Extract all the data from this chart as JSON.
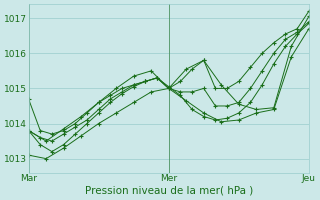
{
  "xlabel": "Pression niveau de la mer( hPa )",
  "bg_color": "#cce8e8",
  "grid_color": "#99cccc",
  "line_color": "#1a6e1a",
  "xlim": [
    0,
    48
  ],
  "ylim": [
    1012.6,
    1017.4
  ],
  "yticks": [
    1013,
    1014,
    1015,
    1016,
    1017
  ],
  "xticks": [
    0,
    24,
    48
  ],
  "xticklabels": [
    "Mar",
    "Mer",
    "Jeu"
  ],
  "series": [
    {
      "x": [
        0,
        2,
        4,
        6,
        8,
        10,
        12,
        14,
        16,
        18,
        20,
        22,
        24,
        26,
        28,
        30,
        32,
        34,
        36,
        38,
        40,
        42,
        44,
        46,
        48
      ],
      "y": [
        1014.7,
        1013.8,
        1013.7,
        1013.8,
        1014.0,
        1014.3,
        1014.6,
        1014.8,
        1015.0,
        1015.1,
        1015.2,
        1015.3,
        1015.0,
        1015.2,
        1015.55,
        1015.8,
        1015.0,
        1015.0,
        1015.2,
        1015.6,
        1016.0,
        1016.3,
        1016.55,
        1016.7,
        1017.2
      ]
    },
    {
      "x": [
        0,
        2,
        4,
        6,
        8,
        10,
        12,
        14,
        16,
        18,
        20,
        22,
        24,
        26,
        28,
        30,
        32,
        34,
        36,
        38,
        40,
        42,
        44,
        46,
        48
      ],
      "y": [
        1013.8,
        1013.6,
        1013.5,
        1013.7,
        1013.9,
        1014.1,
        1014.4,
        1014.7,
        1014.9,
        1015.1,
        1015.2,
        1015.3,
        1015.0,
        1014.9,
        1014.9,
        1015.0,
        1014.5,
        1014.5,
        1014.6,
        1015.0,
        1015.5,
        1016.0,
        1016.4,
        1016.6,
        1016.9
      ]
    },
    {
      "x": [
        0,
        2,
        4,
        6,
        8,
        10,
        12,
        14,
        16,
        18,
        20,
        22,
        24,
        26,
        28,
        30,
        32,
        34,
        36,
        38,
        40,
        42,
        44,
        46,
        48
      ],
      "y": [
        1013.8,
        1013.4,
        1013.2,
        1013.4,
        1013.7,
        1014.0,
        1014.3,
        1014.6,
        1014.85,
        1015.05,
        1015.2,
        1015.3,
        1015.05,
        1014.8,
        1014.4,
        1014.2,
        1014.1,
        1014.15,
        1014.3,
        1014.6,
        1015.1,
        1015.7,
        1016.2,
        1016.55,
        1016.85
      ]
    },
    {
      "x": [
        0,
        3,
        6,
        9,
        12,
        15,
        18,
        21,
        24,
        27,
        30,
        33,
        36,
        39,
        42,
        45,
        48
      ],
      "y": [
        1013.8,
        1013.5,
        1013.85,
        1014.2,
        1014.6,
        1015.0,
        1015.35,
        1015.5,
        1015.0,
        1015.55,
        1015.8,
        1015.1,
        1014.55,
        1014.4,
        1014.45,
        1016.2,
        1017.05
      ]
    },
    {
      "x": [
        0,
        3,
        6,
        9,
        12,
        15,
        18,
        21,
        24,
        27,
        30,
        33,
        36,
        39,
        42,
        45,
        48
      ],
      "y": [
        1013.1,
        1013.0,
        1013.3,
        1013.65,
        1014.0,
        1014.3,
        1014.6,
        1014.9,
        1015.0,
        1014.65,
        1014.3,
        1014.05,
        1014.1,
        1014.3,
        1014.4,
        1015.9,
        1016.7
      ]
    }
  ]
}
